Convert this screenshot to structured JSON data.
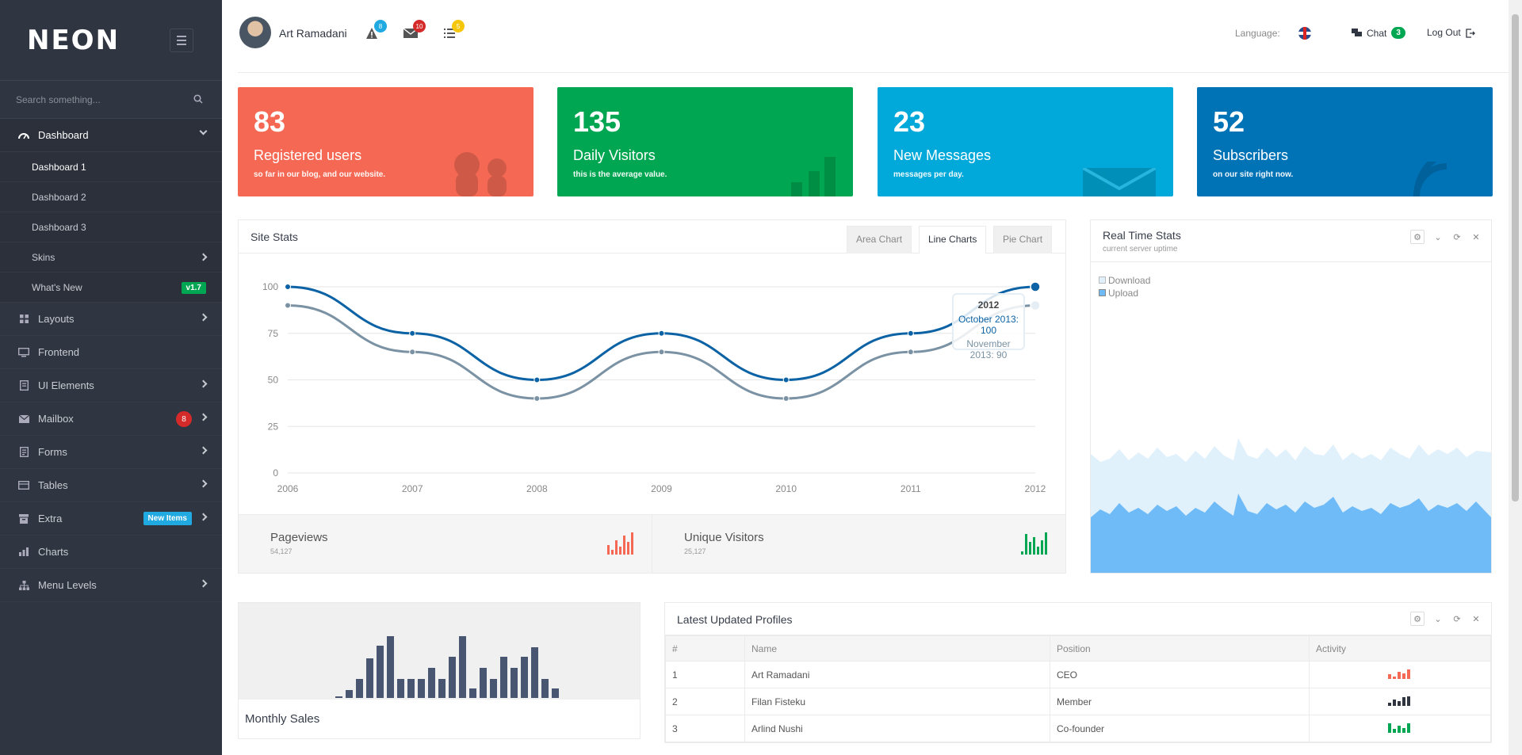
{
  "sidebar": {
    "logo": "NEON",
    "search_placeholder": "Search something...",
    "menu": [
      {
        "label": "Dashboard",
        "icon": "gauge-icon",
        "open": true,
        "children": [
          {
            "label": "Dashboard 1",
            "active": true
          },
          {
            "label": "Dashboard 2"
          },
          {
            "label": "Dashboard 3"
          },
          {
            "label": "Skins"
          },
          {
            "label": "What's New",
            "badge": "v1.7"
          }
        ]
      },
      {
        "label": "Layouts",
        "icon": "layout-icon"
      },
      {
        "label": "Frontend",
        "icon": "monitor-icon"
      },
      {
        "label": "UI Elements",
        "icon": "ui-icon"
      },
      {
        "label": "Mailbox",
        "icon": "mail-icon",
        "badge": "8"
      },
      {
        "label": "Forms",
        "icon": "form-icon"
      },
      {
        "label": "Tables",
        "icon": "table-icon"
      },
      {
        "label": "Extra",
        "icon": "box-icon",
        "badge": "New Items"
      },
      {
        "label": "Charts",
        "icon": "bar-chart-icon"
      },
      {
        "label": "Menu Levels",
        "icon": "sitemap-icon"
      }
    ]
  },
  "header": {
    "user_name": "Art Ramadani",
    "notifications_count": "8",
    "messages_count": "10",
    "tasks_count": "5",
    "language_label": "Language:",
    "chat_label": "Chat",
    "chat_count": "3",
    "logout_label": "Log Out"
  },
  "tiles": [
    {
      "number": "83",
      "title": "Registered users",
      "desc": "so far in our blog, and our website.",
      "color": "#f56954"
    },
    {
      "number": "135",
      "title": "Daily Visitors",
      "desc": "this is the average value.",
      "color": "#00a651"
    },
    {
      "number": "23",
      "title": "New Messages",
      "desc": "messages per day.",
      "color": "#00a9d9"
    },
    {
      "number": "52",
      "title": "Subscribers",
      "desc": "on our site right now.",
      "color": "#0073b7"
    }
  ],
  "site_stats": {
    "title": "Site Stats",
    "tabs": [
      "Area Chart",
      "Line Charts",
      "Pie Chart"
    ],
    "active_tab": 1,
    "pageviews_label": "Pageviews",
    "pageviews_value": "54,127",
    "unique_label": "Unique Visitors",
    "unique_value": "25,127",
    "tooltip": {
      "title": "2012",
      "line1": "October 2013: 100",
      "line2": "November 2013: 90"
    }
  },
  "realtime": {
    "title": "Real Time Stats",
    "subtitle": "current server uptime",
    "legend": [
      "Download",
      "Upload"
    ]
  },
  "monthly_sales": {
    "title": "Monthly Sales"
  },
  "profiles": {
    "title": "Latest Updated Profiles",
    "columns": [
      "#",
      "Name",
      "Position",
      "Activity"
    ],
    "rows": [
      {
        "n": "1",
        "name": "Art Ramadani",
        "position": "CEO",
        "color": "#f56954"
      },
      {
        "n": "2",
        "name": "Filan Fisteku",
        "position": "Member",
        "color": "#303641"
      },
      {
        "n": "3",
        "name": "Arlind Nushi",
        "position": "Co-founder",
        "color": "#00a651"
      }
    ]
  },
  "chart_data": {
    "type": "line",
    "x": [
      "2006",
      "2007",
      "2008",
      "2009",
      "2010",
      "2011",
      "2012"
    ],
    "series": [
      {
        "name": "October 2013",
        "values": [
          100,
          75,
          50,
          75,
          50,
          75,
          100
        ],
        "color": "#0b62a4"
      },
      {
        "name": "November 2013",
        "values": [
          90,
          65,
          40,
          65,
          40,
          65,
          90
        ],
        "color": "#7a92a3"
      }
    ],
    "ylim": [
      0,
      100
    ],
    "yticks": [
      "0",
      "25",
      "50",
      "75",
      "100"
    ],
    "grid": true
  }
}
